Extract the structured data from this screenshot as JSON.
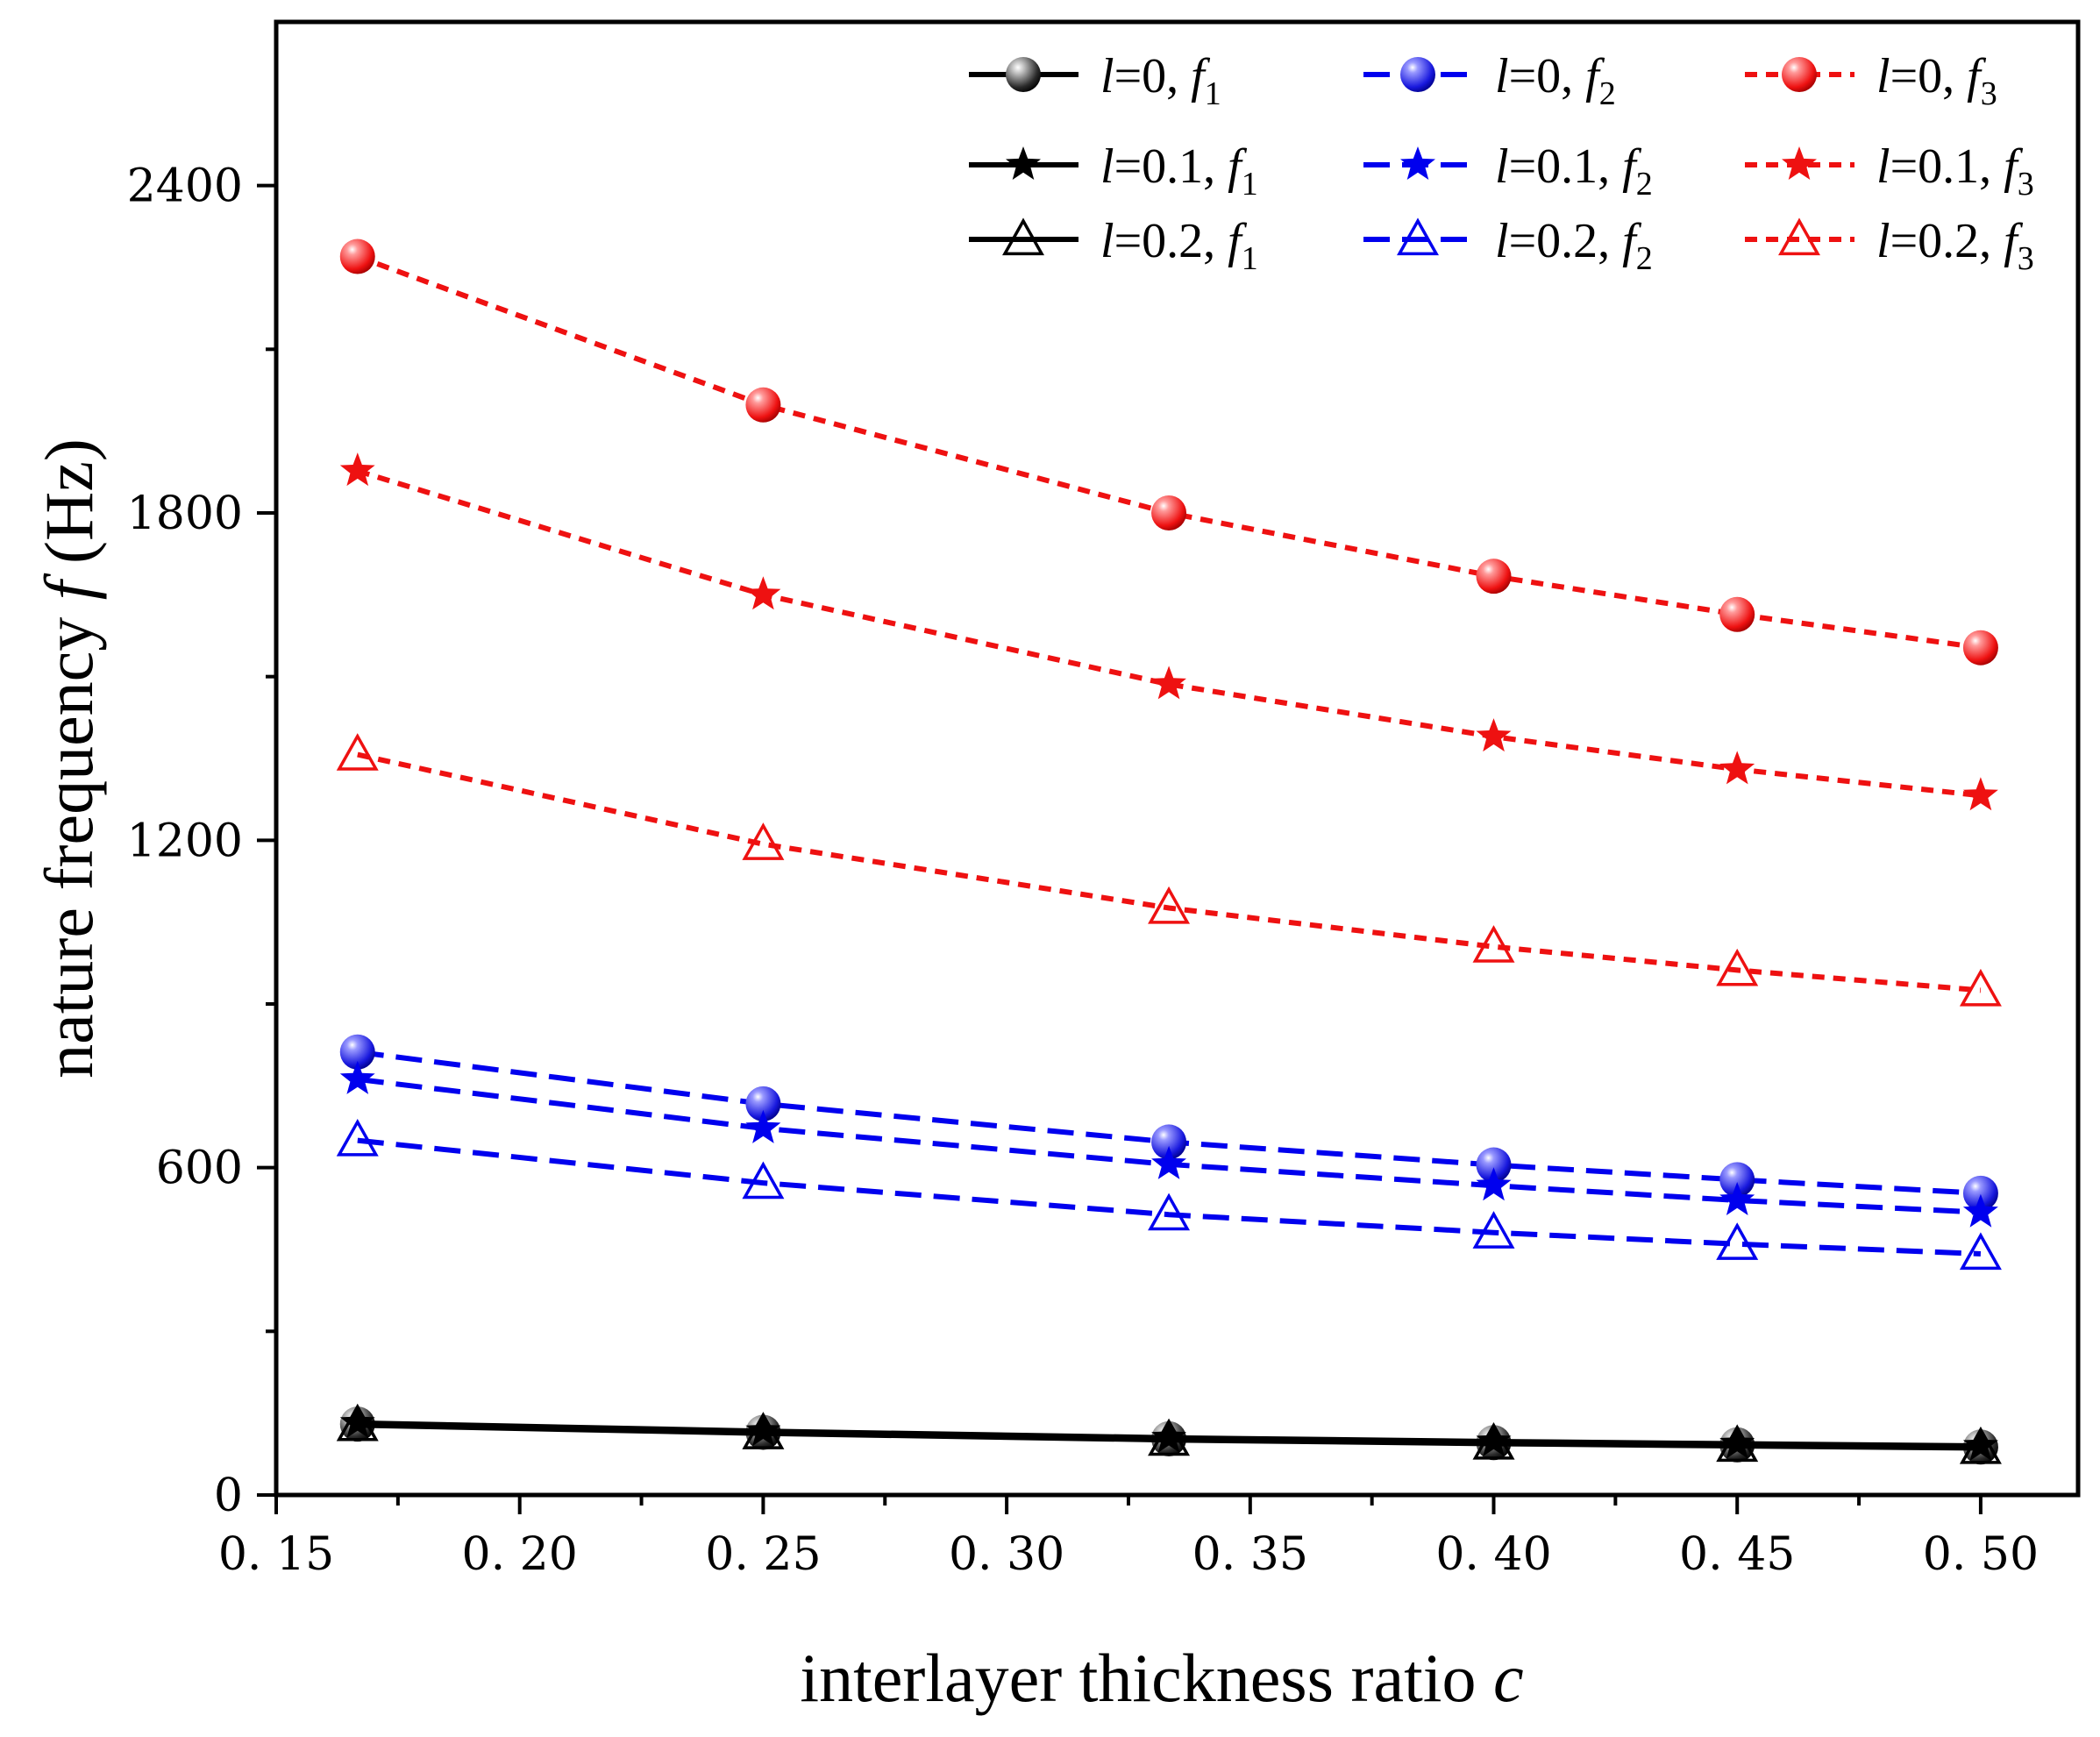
{
  "chart_data": {
    "type": "line",
    "xlabel_text": "interlayer thickness ratio ",
    "xlabel_var": "c",
    "ylabel_text": "nature frequency ",
    "ylabel_var": "f",
    "ylabel_unit": " (Hz)",
    "xlim": [
      0.15,
      0.52
    ],
    "ylim": [
      0,
      2700
    ],
    "xticks": [
      0.15,
      0.2,
      0.25,
      0.3,
      0.35,
      0.4,
      0.45,
      0.5
    ],
    "xtick_labels": [
      "0. 15",
      "0. 20",
      "0. 25",
      "0. 30",
      "0. 35",
      "0. 40",
      "0. 45",
      "0. 50"
    ],
    "yticks": [
      0,
      600,
      1200,
      1800,
      2400
    ],
    "ytick_labels": [
      "0",
      "600",
      "1200",
      "1800",
      "2400"
    ],
    "x": [
      0.1667,
      0.25,
      0.3333,
      0.4,
      0.45,
      0.5
    ],
    "series": [
      {
        "name": "l=0, f1",
        "l": "0",
        "f": "1",
        "mode": 1,
        "color": "#000000",
        "marker": "sphere",
        "values": [
          130,
          115,
          103,
          96,
          92,
          88
        ]
      },
      {
        "name": "l=0.1, f1",
        "l": "0.1",
        "f": "1",
        "mode": 1,
        "color": "#000000",
        "marker": "star",
        "values": [
          132,
          117,
          105,
          98,
          94,
          90
        ]
      },
      {
        "name": "l=0.2, f1",
        "l": "0.2",
        "f": "1",
        "mode": 1,
        "color": "#000000",
        "marker": "triangle",
        "values": [
          128,
          113,
          101,
          94,
          90,
          86
        ]
      },
      {
        "name": "l=0, f2",
        "l": "0",
        "f": "2",
        "mode": 2,
        "color": "#0000ee",
        "marker": "sphere",
        "values": [
          812,
          717,
          647,
          605,
          578,
          553
        ]
      },
      {
        "name": "l=0.1, f2",
        "l": "0.1",
        "f": "2",
        "mode": 2,
        "color": "#0000ee",
        "marker": "star",
        "values": [
          762,
          672,
          606,
          567,
          540,
          518
        ]
      },
      {
        "name": "l=0.2, f2",
        "l": "0.2",
        "f": "2",
        "mode": 2,
        "color": "#0000ee",
        "marker": "triangle",
        "values": [
          650,
          572,
          514,
          481,
          460,
          442
        ]
      },
      {
        "name": "l=0, f3",
        "l": "0",
        "f": "3",
        "mode": 3,
        "color": "#ee1111",
        "marker": "sphere",
        "values": [
          2270,
          1998,
          1800,
          1684,
          1614,
          1553
        ]
      },
      {
        "name": "l=0.1, f3",
        "l": "0.1",
        "f": "3",
        "mode": 3,
        "color": "#ee1111",
        "marker": "star",
        "values": [
          1877,
          1650,
          1486,
          1390,
          1330,
          1282
        ]
      },
      {
        "name": "l=0.2, f3",
        "l": "0.2",
        "f": "3",
        "mode": 3,
        "color": "#ee1111",
        "marker": "triangle",
        "values": [
          1357,
          1193,
          1076,
          1005,
          962,
          925
        ]
      }
    ],
    "legend_location": "top-right",
    "grid": false
  }
}
